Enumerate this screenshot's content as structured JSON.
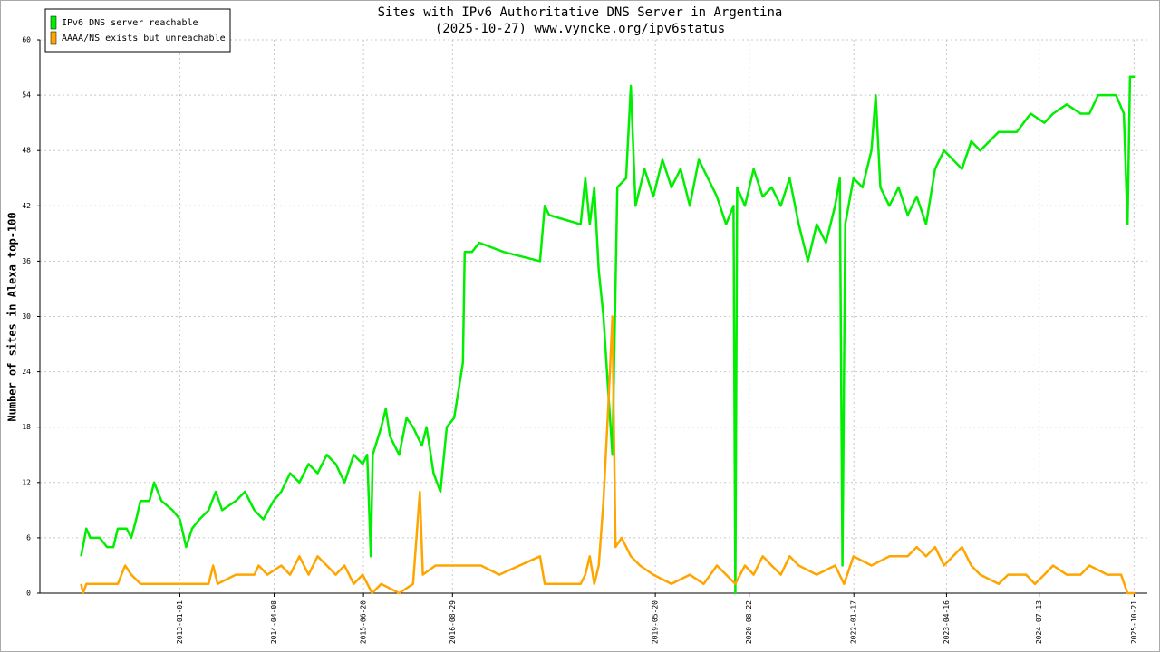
{
  "chart_data": {
    "type": "line",
    "title": "Sites with IPv6 Authoritative DNS Server in Argentina",
    "subtitle": "(2025-10-27) www.vyncke.org/ipv6status",
    "y_label": "Number of sites in Alexa top-100",
    "xlim": [
      "2011-02-15",
      "2025-12-25"
    ],
    "xticks": [
      "2013-01-01",
      "2014-04-08",
      "2015-06-20",
      "2016-08-29",
      "2019-05-20",
      "2020-08-22",
      "2022-01-17",
      "2023-04-16",
      "2024-07-13",
      "2025-10-21"
    ],
    "ylim": [
      0,
      60
    ],
    "yticks": [
      0,
      6,
      12,
      18,
      24,
      30,
      36,
      42,
      48,
      54,
      60
    ],
    "grid": true,
    "legend": "top-left",
    "series": [
      {
        "name": "IPv6 DNS server reachable",
        "color": "#00ee00",
        "x": [
          "2011-09-05",
          "2011-10-01",
          "2011-10-20",
          "2011-12-05",
          "2012-01-10",
          "2012-02-10",
          "2012-03-03",
          "2012-04-15",
          "2012-05-08",
          "2012-06-01",
          "2012-06-22",
          "2012-08-05",
          "2012-08-28",
          "2012-10-03",
          "2012-11-26",
          "2013-01-01",
          "2013-02-01",
          "2013-03-02",
          "2013-04-07",
          "2013-05-22",
          "2013-06-26",
          "2013-07-27",
          "2013-10-02",
          "2013-11-16",
          "2014-01-01",
          "2014-02-14",
          "2014-04-05",
          "2014-05-13",
          "2014-06-25",
          "2014-08-10",
          "2014-09-24",
          "2014-11-07",
          "2014-12-22",
          "2015-02-04",
          "2015-03-19",
          "2015-05-03",
          "2015-06-16",
          "2015-07-08",
          "2015-07-26",
          "2015-08-04",
          "2015-09-15",
          "2015-10-07",
          "2015-10-28",
          "2015-12-12",
          "2016-01-17",
          "2016-02-18",
          "2016-04-01",
          "2016-04-24",
          "2016-05-28",
          "2016-07-01",
          "2016-08-01",
          "2016-09-06",
          "2016-09-28",
          "2016-10-19",
          "2016-10-28",
          "2016-12-03",
          "2017-01-07",
          "2017-05-06",
          "2017-11-01",
          "2017-11-24",
          "2017-12-16",
          "2018-05-19",
          "2018-06-11",
          "2018-07-03",
          "2018-07-25",
          "2018-08-16",
          "2018-09-08",
          "2018-10-01",
          "2018-10-22",
          "2018-11-15",
          "2018-12-28",
          "2019-01-20",
          "2019-02-12",
          "2019-03-28",
          "2019-05-10",
          "2019-06-24",
          "2019-08-07",
          "2019-09-21",
          "2019-11-05",
          "2019-12-19",
          "2020-02-02",
          "2020-03-17",
          "2020-05-01",
          "2020-06-06",
          "2020-06-15",
          "2020-06-24",
          "2020-08-01",
          "2020-09-13",
          "2020-10-27",
          "2020-12-10",
          "2021-01-24",
          "2021-03-08",
          "2021-04-22",
          "2021-06-06",
          "2021-07-19",
          "2021-09-02",
          "2021-10-17",
          "2021-11-09",
          "2021-11-22",
          "2021-12-06",
          "2022-01-15",
          "2022-02-28",
          "2022-04-13",
          "2022-05-04",
          "2022-05-27",
          "2022-07-10",
          "2022-08-24",
          "2022-10-08",
          "2022-11-21",
          "2023-01-06",
          "2023-02-19",
          "2023-04-04",
          "2023-05-18",
          "2023-07-01",
          "2023-08-15",
          "2023-09-28",
          "2023-12-27",
          "2024-03-25",
          "2024-06-01",
          "2024-08-07",
          "2024-09-19",
          "2024-11-25",
          "2025-02-01",
          "2025-03-16",
          "2025-04-28",
          "2025-07-25",
          "2025-09-01",
          "2025-09-19",
          "2025-10-01",
          "2025-10-25"
        ],
        "values": [
          4,
          7,
          6,
          6,
          5,
          5,
          7,
          7,
          6,
          8,
          10,
          10,
          12,
          10,
          9,
          8,
          5,
          7,
          8,
          9,
          11,
          9,
          10,
          11,
          9,
          8,
          10,
          11,
          13,
          12,
          14,
          13,
          15,
          14,
          12,
          15,
          14,
          15,
          4,
          15,
          18,
          20,
          17,
          15,
          19,
          18,
          16,
          18,
          13,
          11,
          18,
          19,
          22,
          25,
          37,
          37,
          38,
          37,
          36,
          42,
          41,
          40,
          45,
          40,
          44,
          35,
          30,
          22,
          15,
          44,
          45,
          55,
          42,
          46,
          43,
          47,
          44,
          46,
          42,
          47,
          45,
          43,
          40,
          42,
          0,
          44,
          42,
          46,
          43,
          44,
          42,
          45,
          40,
          36,
          40,
          38,
          42,
          45,
          3,
          40,
          45,
          44,
          48,
          54,
          44,
          42,
          44,
          41,
          43,
          40,
          46,
          48,
          47,
          46,
          49,
          48,
          50,
          50,
          52,
          51,
          52,
          53,
          52,
          52,
          54,
          54,
          52,
          40,
          56,
          56
        ]
      },
      {
        "name": "AAAA/NS exists but unreachable",
        "color": "#ffa500",
        "x": [
          "2011-09-05",
          "2011-09-15",
          "2011-10-01",
          "2012-03-03",
          "2012-04-08",
          "2012-05-08",
          "2012-06-22",
          "2013-05-22",
          "2013-06-13",
          "2013-07-05",
          "2013-10-02",
          "2014-01-01",
          "2014-01-22",
          "2014-03-06",
          "2014-05-13",
          "2014-06-25",
          "2014-08-10",
          "2014-09-24",
          "2014-11-07",
          "2014-12-22",
          "2015-02-04",
          "2015-03-19",
          "2015-05-03",
          "2015-06-16",
          "2015-08-01",
          "2015-09-15",
          "2015-12-12",
          "2016-02-18",
          "2016-03-22",
          "2016-04-06",
          "2016-06-07",
          "2016-09-06",
          "2017-01-16",
          "2017-04-15",
          "2017-11-01",
          "2017-11-24",
          "2018-05-19",
          "2018-06-11",
          "2018-07-03",
          "2018-07-25",
          "2018-08-16",
          "2018-09-08",
          "2018-10-01",
          "2018-10-22",
          "2018-11-06",
          "2018-12-06",
          "2019-01-20",
          "2019-03-06",
          "2019-05-10",
          "2019-08-07",
          "2019-11-05",
          "2020-01-12",
          "2020-03-17",
          "2020-05-01",
          "2020-06-15",
          "2020-08-01",
          "2020-09-13",
          "2020-10-27",
          "2020-12-10",
          "2021-01-24",
          "2021-03-08",
          "2021-04-22",
          "2021-07-19",
          "2021-10-17",
          "2021-11-30",
          "2022-01-15",
          "2022-04-13",
          "2022-07-10",
          "2022-10-08",
          "2022-11-21",
          "2023-01-06",
          "2023-02-19",
          "2023-04-04",
          "2023-05-18",
          "2023-07-01",
          "2023-08-15",
          "2023-09-28",
          "2023-12-27",
          "2024-02-12",
          "2024-05-10",
          "2024-06-22",
          "2024-08-07",
          "2024-09-19",
          "2024-11-25",
          "2025-02-01",
          "2025-03-16",
          "2025-06-12",
          "2025-08-18",
          "2025-09-19",
          "2025-10-25"
        ],
        "values": [
          1,
          0,
          1,
          1,
          3,
          2,
          1,
          1,
          3,
          1,
          2,
          2,
          3,
          2,
          3,
          2,
          4,
          2,
          4,
          3,
          2,
          3,
          1,
          2,
          0,
          1,
          0,
          1,
          11,
          2,
          3,
          3,
          3,
          2,
          4,
          1,
          1,
          2,
          4,
          1,
          3,
          10,
          20,
          30,
          5,
          6,
          4,
          3,
          2,
          1,
          2,
          1,
          3,
          2,
          1,
          3,
          2,
          4,
          3,
          2,
          4,
          3,
          2,
          3,
          1,
          4,
          3,
          4,
          4,
          5,
          4,
          5,
          3,
          4,
          5,
          3,
          2,
          1,
          2,
          2,
          1,
          2,
          3,
          2,
          2,
          3,
          2,
          2,
          0,
          0
        ]
      }
    ]
  }
}
